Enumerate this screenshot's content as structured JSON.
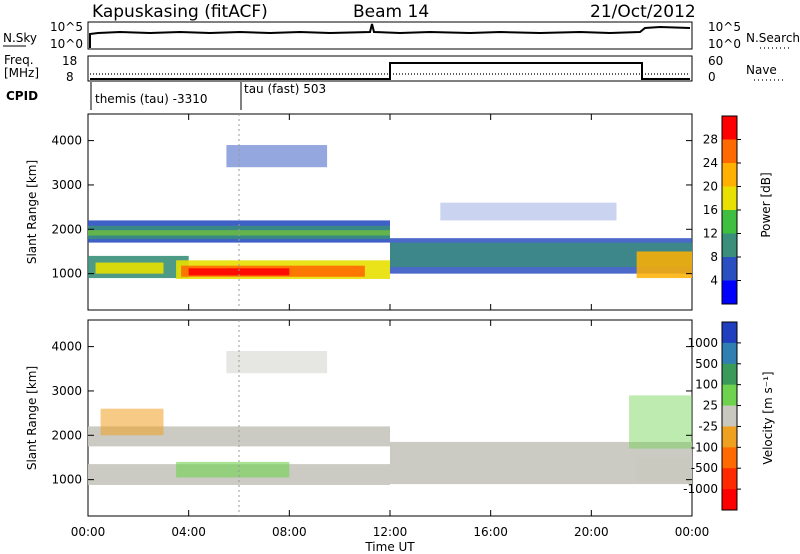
{
  "header": {
    "station": "Kapuskasing (fitACF)",
    "beam": "Beam 14",
    "date": "21/Oct/2012"
  },
  "panels": {
    "noise": {
      "left_label": "N.Sky",
      "right_label": "N.Search",
      "left_ticks": [
        "10^5",
        "10^0"
      ],
      "right_ticks": [
        "10^5",
        "10^0"
      ]
    },
    "freq": {
      "left_label_1": "Freq.",
      "left_label_2": "[MHz]",
      "right_label": "Nave",
      "left_ticks": [
        "18",
        "8"
      ],
      "right_ticks": [
        "60",
        "0"
      ]
    },
    "cpid": {
      "label": "CPID",
      "mode1": "themis (tau) -3310",
      "mode2": "tau (fast) 503"
    }
  },
  "chart_data": [
    {
      "type": "heatmap",
      "name": "power",
      "ylabel": "Slant Range [km]",
      "xlabel": "Time UT",
      "x_ticks": [
        "00:00",
        "04:00",
        "08:00",
        "12:00",
        "16:00",
        "20:00",
        "00:00"
      ],
      "y_ticks": [
        "1000",
        "2000",
        "3000",
        "4000"
      ],
      "ylim": [
        180,
        4600
      ],
      "colorbar": {
        "label": "Power [dB]",
        "ticks": [
          "28",
          "24",
          "20",
          "16",
          "12",
          "8",
          "4"
        ],
        "colors": [
          "#ff0000",
          "#ff6a00",
          "#ffb000",
          "#e8e000",
          "#3fbf3f",
          "#3a8f7a",
          "#2a4fc0",
          "#0000ff"
        ]
      },
      "features": [
        {
          "band": "lower echo band",
          "t_start": "00:00",
          "t_end": "12:00",
          "range_km": [
            900,
            1400
          ]
        },
        {
          "band": "upper echo band",
          "t_start": "00:00",
          "t_end": "12:00",
          "range_km": [
            1700,
            2200
          ]
        },
        {
          "band": "continuous band",
          "t_start": "12:00",
          "t_end": "00:00",
          "range_km": [
            1000,
            1800
          ]
        }
      ]
    },
    {
      "type": "heatmap",
      "name": "velocity",
      "ylabel": "Slant Range [km]",
      "xlabel": "Time UT",
      "x_ticks": [
        "00:00",
        "04:00",
        "08:00",
        "12:00",
        "16:00",
        "20:00",
        "00:00"
      ],
      "y_ticks": [
        "1000",
        "2000",
        "3000",
        "4000"
      ],
      "ylim": [
        180,
        4600
      ],
      "colorbar": {
        "label": "Velocity [m s⁻¹]",
        "ticks": [
          "1000",
          "500",
          "100",
          "25",
          "-25",
          "-100",
          "-500",
          "-1000"
        ],
        "colors": [
          "#1f3fbf",
          "#2f7fb0",
          "#3a9a5a",
          "#6fd24f",
          "#c8c8c0",
          "#f0a020",
          "#ff6a00",
          "#ff2a00",
          "#ff0000"
        ]
      }
    }
  ],
  "footer": {
    "xlabel": "Time UT"
  }
}
